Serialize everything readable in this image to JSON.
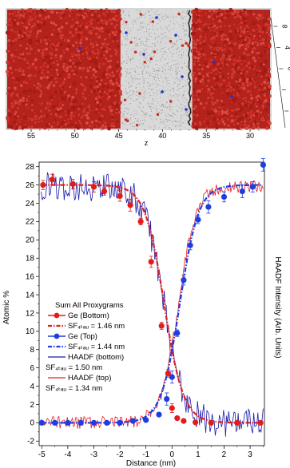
{
  "chart_data": [
    {
      "type": "image",
      "panel": "top",
      "xlabel": "z",
      "x_ticks": [
        "55",
        "50",
        "45",
        "40",
        "35",
        "30"
      ],
      "y_ticks": [
        "8",
        "4",
        "0",
        "-4",
        "-8"
      ],
      "colors": {
        "atoms_red": "#cc2a22",
        "atoms_blue": "#2233cc",
        "interface_gray": "#d9d9d9"
      }
    },
    {
      "type": "line",
      "panel": "bottom",
      "xlabel": "Distance (nm)",
      "ylabel": "Atomic %",
      "ylabel_right": "HAADF Intensity (Arb. Units)",
      "xlim": [
        -5.1,
        3.55
      ],
      "ylim": [
        -2.5,
        28.5
      ],
      "x_ticks": [
        -5,
        -4,
        -3,
        -2,
        -1,
        0,
        1,
        2,
        3
      ],
      "y_ticks": [
        -2,
        0,
        2,
        4,
        6,
        8,
        10,
        12,
        14,
        16,
        18,
        20,
        22,
        24,
        26,
        28
      ],
      "legend": {
        "position": "center-left",
        "title": "Sum All Proxygrams",
        "entries": [
          {
            "text": "Ge (Bottom)",
            "kind": "marker",
            "color": "#e11c1c"
          },
          {
            "text": "SF₄ₜₐᵤ = 1.46 nm",
            "kind": "dashdot",
            "color": "#e11c1c"
          },
          {
            "text": "Ge (Top)",
            "kind": "marker",
            "color": "#1f3de0"
          },
          {
            "text": "SF₄ₜₐᵤ = 1.44 nm",
            "kind": "dashdot",
            "color": "#1f3de0"
          },
          {
            "text": "HAADF (bottom)",
            "kind": "line",
            "color": "#1a1aa8"
          },
          {
            "text": "SF₄ₜₐᵤ = 1.50 nm",
            "kind": "text",
            "color": "#000000"
          },
          {
            "text": "HAADF (top)",
            "kind": "line",
            "color": "#e81f1f"
          },
          {
            "text": "SF₄ₜₐᵤ = 1.34 nm",
            "kind": "text",
            "color": "#000000"
          }
        ]
      },
      "series": [
        {
          "name": "Ge (Bottom)",
          "color": "#e11c1c",
          "points": [
            [
              -4.95,
              26.0
            ],
            [
              -4.6,
              26.6
            ],
            [
              -3.8,
              26.1
            ],
            [
              -3.0,
              25.8
            ],
            [
              -2.6,
              25.3
            ],
            [
              -2.0,
              24.8
            ],
            [
              -1.6,
              23.8
            ],
            [
              -1.2,
              22.0
            ],
            [
              -0.8,
              17.6
            ],
            [
              -0.4,
              10.6
            ],
            [
              -0.15,
              5.4
            ],
            [
              0.0,
              1.6
            ],
            [
              0.2,
              0.5
            ],
            [
              0.45,
              0.2
            ],
            [
              0.9,
              0.05
            ],
            [
              1.5,
              0.0
            ],
            [
              2.5,
              0.0
            ],
            [
              3.4,
              0.0
            ]
          ]
        },
        {
          "name": "Ge (Top)",
          "color": "#1f3de0",
          "points": [
            [
              -5.0,
              0.0
            ],
            [
              -4.5,
              0.0
            ],
            [
              -4.0,
              0.0
            ],
            [
              -3.5,
              0.0
            ],
            [
              -3.0,
              0.0
            ],
            [
              -2.5,
              0.0
            ],
            [
              -2.0,
              0.0
            ],
            [
              -1.5,
              0.2
            ],
            [
              -1.0,
              0.3
            ],
            [
              -0.5,
              0.9
            ],
            [
              -0.2,
              2.6
            ],
            [
              0.0,
              5.0
            ],
            [
              0.2,
              9.8
            ],
            [
              0.45,
              15.6
            ],
            [
              0.7,
              19.4
            ],
            [
              1.0,
              22.2
            ],
            [
              1.4,
              23.6
            ],
            [
              2.0,
              24.7
            ],
            [
              2.7,
              25.3
            ],
            [
              3.1,
              25.8
            ],
            [
              3.5,
              28.2
            ]
          ]
        },
        {
          "name": "SF₄ₜₐᵤ = 1.46 nm",
          "color": "#e11c1c",
          "fit": {
            "type": "decreasing-sigmoid",
            "plateau": 26.0,
            "center": -0.3,
            "width": 0.37
          }
        },
        {
          "name": "SF₄ₜₐᵤ = 1.44 nm",
          "color": "#1f3de0",
          "fit": {
            "type": "increasing-sigmoid",
            "plateau": 26.0,
            "center": 0.3,
            "width": 0.36
          }
        },
        {
          "name": "HAADF (bottom)",
          "color": "#1a1aa8",
          "trend": {
            "type": "decreasing-sigmoid",
            "plateau": 25.8,
            "center": -0.3,
            "width": 0.38,
            "noise": 1.6
          }
        },
        {
          "name": "HAADF (top)",
          "color": "#e81f1f",
          "trend": {
            "type": "increasing-sigmoid",
            "plateau": 25.8,
            "center": 0.25,
            "width": 0.34,
            "noise": 0.7
          }
        }
      ]
    }
  ]
}
